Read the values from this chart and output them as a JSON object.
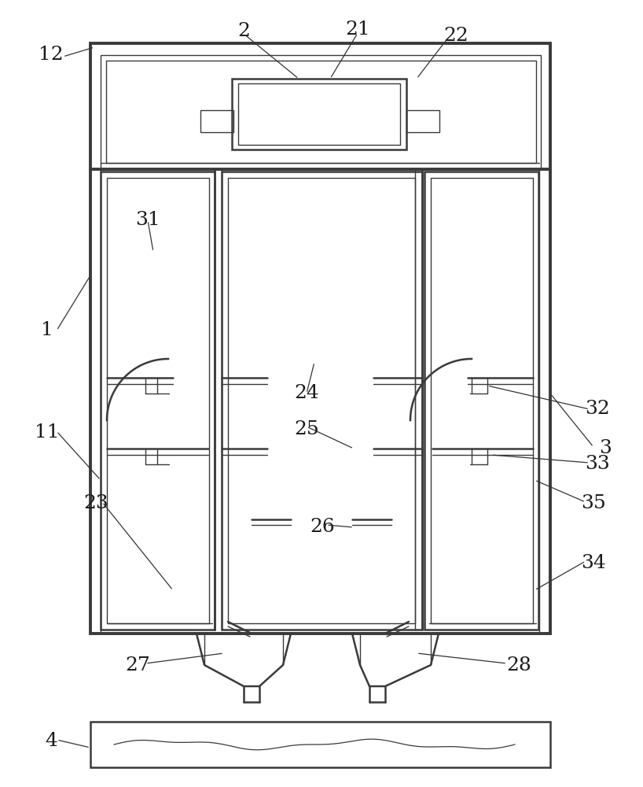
{
  "bg_color": "#ffffff",
  "lc": "#3a3a3a",
  "lw": 1.8,
  "tlw": 1.0,
  "fig_w": 8.18,
  "fig_h": 10.0,
  "dpi": 100
}
